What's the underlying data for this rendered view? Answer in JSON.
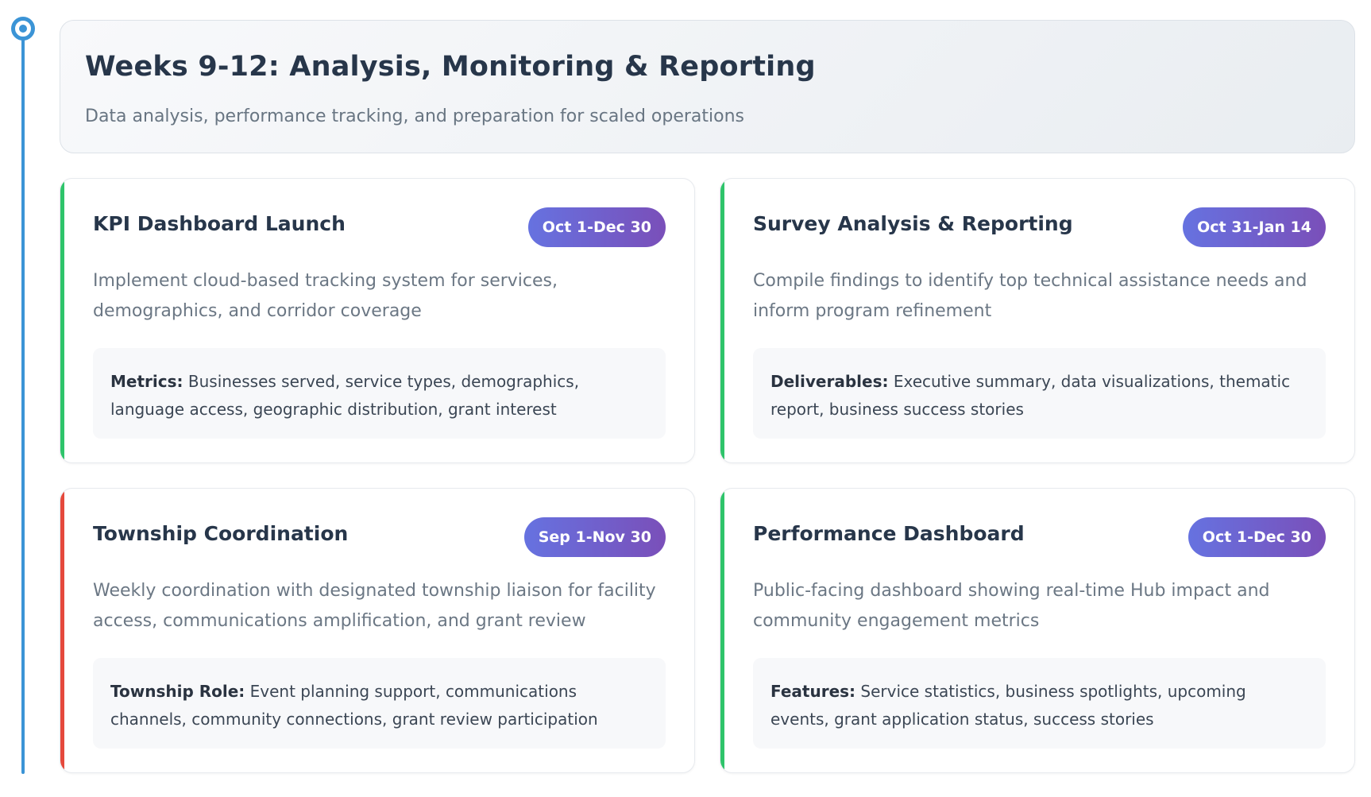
{
  "phase": {
    "title": "Weeks 9-12: Analysis, Monitoring & Reporting",
    "subtitle": "Data analysis, performance tracking, and preparation for scaled operations"
  },
  "cards": [
    {
      "title": "KPI Dashboard Launch",
      "date": "Oct 1-Dec 30",
      "description": "Implement cloud-based tracking system for services, demographics, and corridor coverage",
      "detail_label": "Metrics:",
      "detail_text": " Businesses served, service types, demographics, language access, geographic distribution, grant interest",
      "accent": "#2ec46a"
    },
    {
      "title": "Survey Analysis & Reporting",
      "date": "Oct 31-Jan 14",
      "description": "Compile findings to identify top technical assistance needs and inform program refinement",
      "detail_label": "Deliverables:",
      "detail_text": " Executive summary, data visualizations, thematic report, business success stories",
      "accent": "#2ec46a"
    },
    {
      "title": "Township Coordination",
      "date": "Sep 1-Nov 30",
      "description": "Weekly coordination with designated township liaison for facility access, communications amplification, and grant review",
      "detail_label": "Township Role:",
      "detail_text": " Event planning support, communications channels, community connections, grant review participation",
      "accent": "#e5493c"
    },
    {
      "title": "Performance Dashboard",
      "date": "Oct 1-Dec 30",
      "description": "Public-facing dashboard showing real-time Hub impact and community engagement metrics",
      "detail_label": "Features:",
      "detail_text": " Service statistics, business spotlights, upcoming events, grant application status, success stories",
      "accent": "#2ec46a"
    }
  ]
}
